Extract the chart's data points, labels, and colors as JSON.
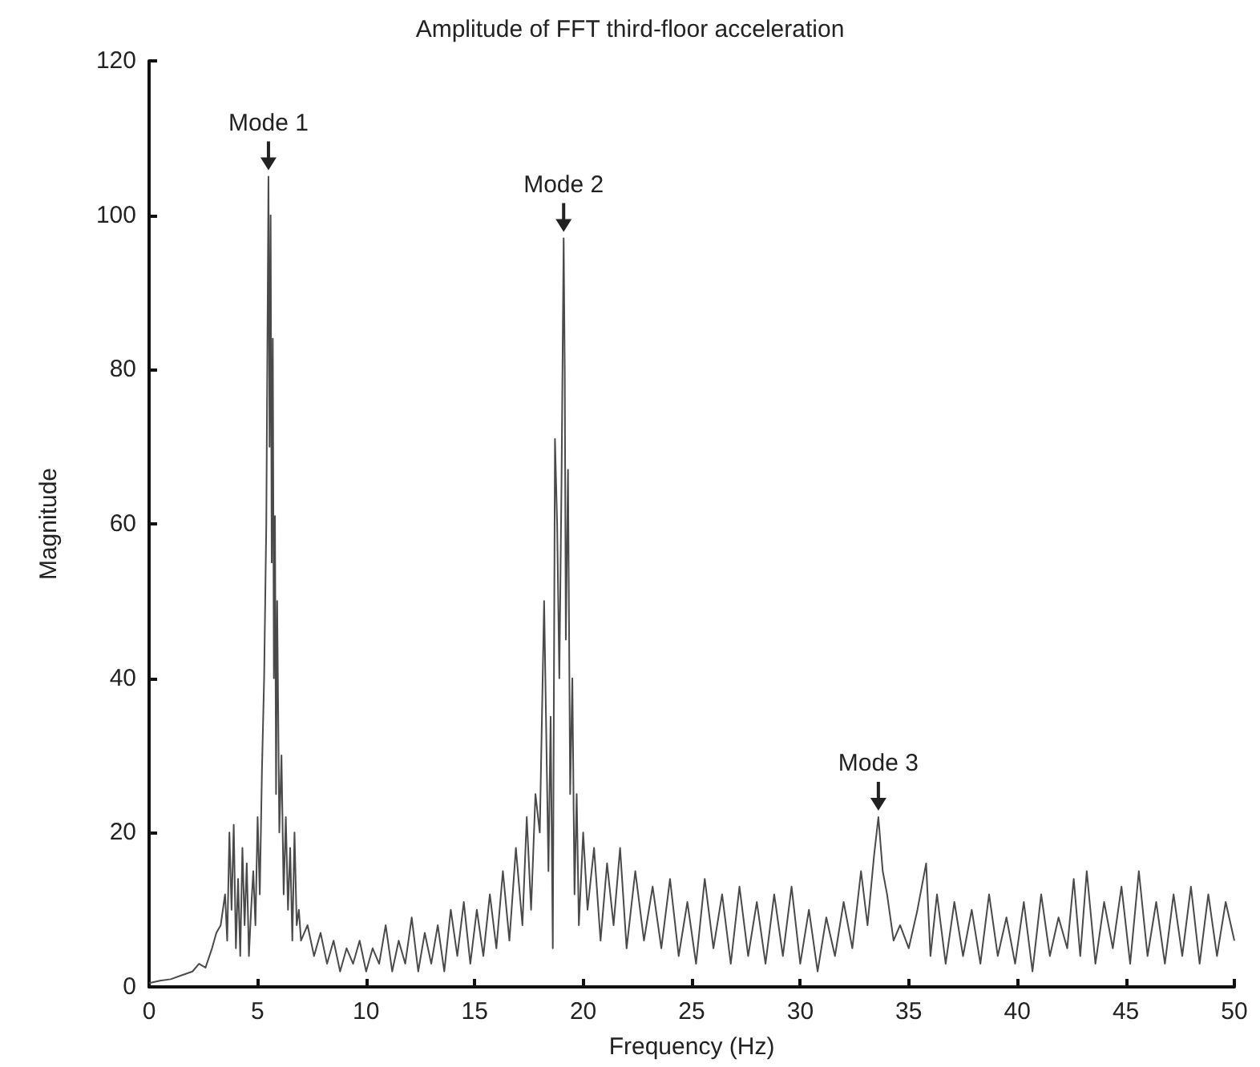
{
  "chart_data": {
    "type": "line",
    "title": "Amplitude of FFT third-floor acceleration",
    "xlabel": "Frequency (Hz)",
    "ylabel": "Magnitude",
    "xlim": [
      0,
      50
    ],
    "xticks": [
      0,
      5,
      10,
      15,
      20,
      25,
      30,
      35,
      40,
      45,
      50
    ],
    "ylim": [
      0,
      120
    ],
    "yticks": [
      0,
      20,
      40,
      60,
      80,
      100,
      120
    ],
    "grid": false,
    "marker": "none",
    "line_style": "solid",
    "annotations": [
      {
        "text": "Mode 1",
        "x": 5.5,
        "y": 105
      },
      {
        "text": "Mode 2",
        "x": 19.1,
        "y": 97
      },
      {
        "text": "Mode 3",
        "x": 33.6,
        "y": 22
      }
    ],
    "series": [
      {
        "color": "#4a4a4a",
        "x": [
          0,
          0.5,
          1,
          1.5,
          2,
          2.3,
          2.6,
          2.9,
          3.1,
          3.3,
          3.5,
          3.6,
          3.7,
          3.8,
          3.9,
          4.0,
          4.1,
          4.2,
          4.3,
          4.4,
          4.5,
          4.6,
          4.7,
          4.8,
          4.9,
          5.0,
          5.1,
          5.2,
          5.3,
          5.4,
          5.5,
          5.55,
          5.6,
          5.65,
          5.7,
          5.75,
          5.8,
          5.85,
          5.9,
          6.0,
          6.1,
          6.2,
          6.3,
          6.4,
          6.5,
          6.6,
          6.7,
          6.8,
          6.9,
          7.0,
          7.3,
          7.6,
          7.9,
          8.2,
          8.5,
          8.8,
          9.1,
          9.4,
          9.7,
          10.0,
          10.3,
          10.6,
          10.9,
          11.2,
          11.5,
          11.8,
          12.1,
          12.4,
          12.7,
          13.0,
          13.3,
          13.6,
          13.9,
          14.2,
          14.5,
          14.8,
          15.1,
          15.4,
          15.7,
          16.0,
          16.3,
          16.6,
          16.9,
          17.2,
          17.4,
          17.6,
          17.8,
          18.0,
          18.2,
          18.4,
          18.5,
          18.6,
          18.7,
          18.8,
          18.9,
          19.0,
          19.1,
          19.15,
          19.2,
          19.3,
          19.4,
          19.5,
          19.6,
          19.7,
          19.8,
          20.0,
          20.2,
          20.5,
          20.8,
          21.1,
          21.4,
          21.7,
          22.0,
          22.4,
          22.8,
          23.2,
          23.6,
          24.0,
          24.4,
          24.8,
          25.2,
          25.6,
          26.0,
          26.4,
          26.8,
          27.2,
          27.6,
          28.0,
          28.4,
          28.8,
          29.2,
          29.6,
          30.0,
          30.4,
          30.8,
          31.2,
          31.6,
          32.0,
          32.4,
          32.8,
          33.1,
          33.4,
          33.6,
          33.8,
          34.0,
          34.3,
          34.6,
          35.0,
          35.4,
          35.8,
          36.0,
          36.3,
          36.7,
          37.1,
          37.5,
          37.9,
          38.3,
          38.7,
          39.1,
          39.5,
          39.9,
          40.3,
          40.7,
          41.1,
          41.5,
          41.9,
          42.3,
          42.6,
          42.9,
          43.2,
          43.6,
          44.0,
          44.4,
          44.8,
          45.2,
          45.6,
          46.0,
          46.4,
          46.8,
          47.2,
          47.6,
          48.0,
          48.4,
          48.8,
          49.2,
          49.6,
          50
        ],
        "values": [
          0.5,
          0.8,
          1,
          1.5,
          2,
          3,
          2.5,
          5,
          7,
          8,
          12,
          6,
          20,
          10,
          21,
          5,
          14,
          4,
          18,
          8,
          16,
          4,
          10,
          15,
          8,
          22,
          12,
          28,
          40,
          60,
          105,
          70,
          100,
          55,
          84,
          40,
          61,
          25,
          50,
          20,
          30,
          12,
          22,
          10,
          18,
          6,
          20,
          8,
          10,
          6,
          8,
          4,
          7,
          3,
          6,
          2,
          5,
          3,
          6,
          2,
          5,
          3,
          8,
          2,
          6,
          3,
          9,
          2,
          7,
          3,
          8,
          2,
          10,
          4,
          11,
          3,
          10,
          4,
          12,
          5,
          15,
          6,
          18,
          8,
          22,
          10,
          25,
          20,
          50,
          15,
          35,
          5,
          71,
          60,
          40,
          65,
          97,
          80,
          45,
          67,
          25,
          40,
          12,
          25,
          8,
          20,
          10,
          18,
          6,
          16,
          8,
          18,
          5,
          15,
          6,
          13,
          5,
          14,
          4,
          11,
          3,
          14,
          5,
          12,
          3,
          13,
          4,
          11,
          3,
          12,
          4,
          13,
          3,
          10,
          2,
          9,
          4,
          11,
          5,
          15,
          8,
          17,
          22,
          15,
          12,
          6,
          8,
          5,
          10,
          16,
          4,
          12,
          3,
          11,
          4,
          10,
          3,
          12,
          4,
          9,
          3,
          11,
          2,
          12,
          4,
          9,
          5,
          14,
          4,
          15,
          3,
          11,
          5,
          13,
          3,
          15,
          4,
          11,
          3,
          12,
          4,
          13,
          3,
          12,
          4,
          11,
          6
        ]
      }
    ]
  }
}
